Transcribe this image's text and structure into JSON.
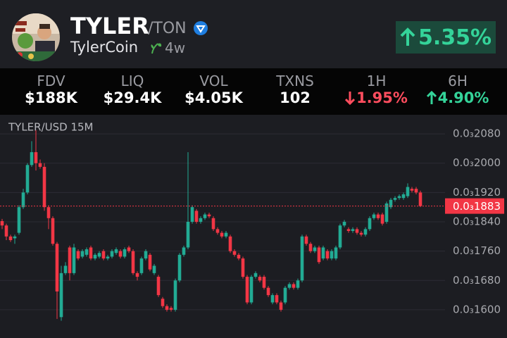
{
  "header": {
    "symbol": "TYLER",
    "pair": "/TON",
    "name": "TylerCoin",
    "age": "4w",
    "change": "5.35%"
  },
  "stats": [
    {
      "label": "FDV",
      "value": "$188K"
    },
    {
      "label": "LIQ",
      "value": "$29.4K"
    },
    {
      "label": "VOL",
      "value": "$4.05K"
    },
    {
      "label": "TXNS",
      "value": "102"
    },
    {
      "label": "1H",
      "value": "1.95%",
      "direction": "down"
    },
    {
      "label": "6H",
      "value": "4.90%",
      "direction": "up"
    }
  ],
  "chart_data": {
    "type": "candlestick",
    "title": "TYLER/USD 15M",
    "up_color": "#22ab94",
    "down_color": "#f23645",
    "grid": true,
    "ylim": [
      0.0001523,
      0.0002132
    ],
    "yticks": [
      {
        "value": 0.000208,
        "label": "0.0₃2080"
      },
      {
        "value": 0.0002,
        "label": "0.0₃2000"
      },
      {
        "value": 0.000192,
        "label": "0.0₃1920"
      },
      {
        "value": 0.000184,
        "label": "0.0₃1840"
      },
      {
        "value": 0.000176,
        "label": "0.0₃1760"
      },
      {
        "value": 0.000168,
        "label": "0.0₃1680"
      },
      {
        "value": 0.00016,
        "label": "0.0₃1600"
      }
    ],
    "last_price": {
      "value": 0.0001883,
      "label": "0.0₃1883"
    },
    "open": [
      0.0001842,
      0.000183,
      0.00018,
      0.0001795,
      0.000181,
      0.000188,
      0.000192,
      0.0001995,
      0.000203,
      0.0002,
      0.000199,
      0.000188,
      0.000185,
      0.000178,
      0.000158,
      0.00017,
      0.000177,
      0.00017,
      0.000176,
      0.0001745,
      0.000175,
      0.000177,
      0.000174,
      0.0001745,
      0.000176,
      0.000174,
      0.0001745,
      0.0001755,
      0.000176,
      0.0001745,
      0.000177,
      0.000176,
      0.00017,
      0.00017,
      0.000174,
      0.000175,
      0.00017,
      0.000169,
      0.000163,
      0.000161,
      0.0001605,
      0.00016,
      0.000168,
      0.000175,
      0.000177,
      0.000184,
      0.000187,
      0.000184,
      0.000185,
      0.000186,
      0.000185,
      0.000182,
      0.000181,
      0.00018,
      0.00018,
      0.000176,
      0.000175,
      0.000174,
      0.000169,
      0.000162,
      0.000169,
      0.000169,
      0.000169,
      0.000166,
      0.000162,
      0.000164,
      0.000162,
      0.000162,
      0.000166,
      0.000167,
      0.000166,
      0.000168,
      0.00018,
      0.000178,
      0.000176,
      0.000177,
      0.000174,
      0.000176,
      0.000174,
      0.000174,
      0.000177,
      0.000183,
      0.000182,
      0.0001815,
      0.000182,
      0.000181,
      0.0001805,
      0.000182,
      0.000185,
      0.000186,
      0.000186,
      0.000184,
      0.000188,
      0.00019,
      0.0001905,
      0.0001905,
      0.000191,
      0.000193,
      0.000193,
      0.000192
    ],
    "close": [
      0.000183,
      0.00018,
      0.000179,
      0.00018,
      0.000188,
      0.000192,
      0.0001995,
      0.000203,
      0.0002,
      0.000199,
      0.000188,
      0.000185,
      0.000178,
      0.000165,
      0.00017,
      0.000172,
      0.00017,
      0.000177,
      0.000174,
      0.000176,
      0.0001765,
      0.000174,
      0.000175,
      0.0001755,
      0.000174,
      0.0001745,
      0.000176,
      0.0001765,
      0.0001745,
      0.0001765,
      0.000176,
      0.00017,
      0.000169,
      0.000174,
      0.000176,
      0.000171,
      0.000172,
      0.000164,
      0.000161,
      0.00016,
      0.00016,
      0.000168,
      0.000175,
      0.000177,
      0.000184,
      0.000188,
      0.000184,
      0.000185,
      0.000186,
      0.0001855,
      0.000182,
      0.000181,
      0.00018,
      0.000181,
      0.000176,
      0.000175,
      0.000174,
      0.000169,
      0.000162,
      0.000169,
      0.00017,
      0.000168,
      0.000166,
      0.000164,
      0.000164,
      0.000162,
      0.00016,
      0.000166,
      0.000167,
      0.000166,
      0.000168,
      0.00018,
      0.000178,
      0.000176,
      0.000177,
      0.000173,
      0.000177,
      0.000174,
      0.000176,
      0.000177,
      0.000183,
      0.000184,
      0.0001815,
      0.000182,
      0.000181,
      0.0001805,
      0.000182,
      0.000185,
      0.000186,
      0.000185,
      0.0001835,
      0.000189,
      0.00019,
      0.0001905,
      0.000191,
      0.0001915,
      0.0001935,
      0.0001925,
      0.000192,
      0.0001883
    ],
    "high": [
      0.0001848,
      0.0001835,
      0.0001805,
      0.0001805,
      0.0001885,
      0.000193,
      0.0002,
      0.000206,
      0.000209,
      0.000201,
      0.0002,
      0.0001885,
      0.0001855,
      0.0001785,
      0.000172,
      0.000173,
      0.0001775,
      0.000178,
      0.0001765,
      0.0001765,
      0.000177,
      0.0001775,
      0.0001755,
      0.000176,
      0.0001765,
      0.000175,
      0.0001765,
      0.000177,
      0.0001765,
      0.000177,
      0.0001775,
      0.0001765,
      0.0001705,
      0.0001745,
      0.0001765,
      0.0001755,
      0.0001725,
      0.0001695,
      0.0001635,
      0.0001615,
      0.000161,
      0.0001685,
      0.0001755,
      0.0001775,
      0.000203,
      0.0001885,
      0.0001875,
      0.0001855,
      0.0001865,
      0.0001865,
      0.0001855,
      0.0001825,
      0.0001815,
      0.0001815,
      0.0001805,
      0.0001765,
      0.0001755,
      0.0001745,
      0.0001695,
      0.0001695,
      0.0001705,
      0.0001695,
      0.0001695,
      0.0001665,
      0.0001645,
      0.0001645,
      0.0001625,
      0.0001665,
      0.0001675,
      0.0001675,
      0.0001685,
      0.0001805,
      0.0001805,
      0.0001785,
      0.0001775,
      0.0001775,
      0.0001775,
      0.0001765,
      0.0001765,
      0.0001775,
      0.0001835,
      0.0001845,
      0.0001825,
      0.0001825,
      0.0001825,
      0.0001815,
      0.0001825,
      0.0001855,
      0.0001865,
      0.0001865,
      0.0001865,
      0.0001895,
      0.0001905,
      0.000191,
      0.0001915,
      0.000192,
      0.0001945,
      0.0001935,
      0.0001935,
      0.0001925
    ],
    "low": [
      0.000182,
      0.000179,
      0.0001785,
      0.000178,
      0.0001805,
      0.0001875,
      0.0001915,
      0.000199,
      0.000198,
      0.0001985,
      0.000187,
      0.000182,
      0.0001775,
      0.0001575,
      0.000157,
      0.0001695,
      0.000168,
      0.0001695,
      0.0001735,
      0.000174,
      0.0001745,
      0.0001735,
      0.0001735,
      0.000174,
      0.0001735,
      0.0001735,
      0.000174,
      0.000175,
      0.000174,
      0.000174,
      0.0001755,
      0.0001695,
      0.000168,
      0.0001695,
      0.0001735,
      0.0001705,
      0.0001695,
      0.0001635,
      0.0001605,
      0.0001595,
      0.0001595,
      0.0001595,
      0.0001675,
      0.0001745,
      0.0001765,
      0.0001835,
      0.0001835,
      0.0001835,
      0.0001845,
      0.000185,
      0.0001815,
      0.0001805,
      0.0001795,
      0.0001795,
      0.0001755,
      0.0001745,
      0.0001735,
      0.0001685,
      0.0001615,
      0.0001615,
      0.0001685,
      0.0001675,
      0.0001655,
      0.0001635,
      0.0001615,
      0.0001615,
      0.0001595,
      0.0001615,
      0.0001655,
      0.0001655,
      0.0001655,
      0.0001675,
      0.0001775,
      0.0001755,
      0.0001755,
      0.0001725,
      0.0001735,
      0.0001735,
      0.0001735,
      0.0001735,
      0.0001765,
      0.0001825,
      0.000181,
      0.000181,
      0.0001805,
      0.00018,
      0.00018,
      0.0001815,
      0.0001845,
      0.0001845,
      0.000183,
      0.0001835,
      0.0001875,
      0.0001895,
      0.00019,
      0.00019,
      0.0001905,
      0.000192,
      0.0001915,
      0.000188
    ]
  }
}
